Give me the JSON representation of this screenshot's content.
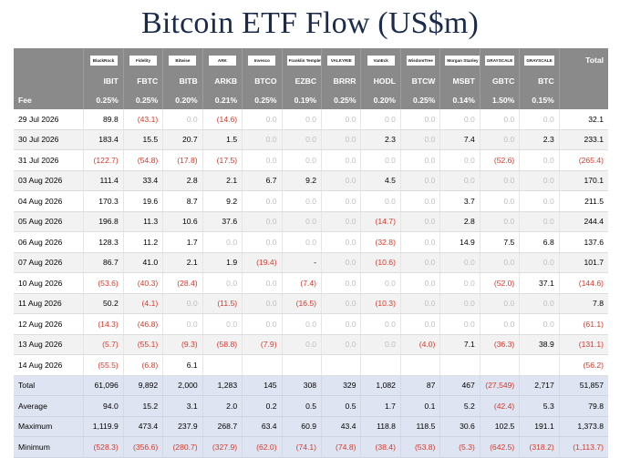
{
  "title": "Bitcoin ETF Flow (US$m)",
  "issuers": [
    "BlackRock",
    "Fidelity",
    "Bitwise",
    "ARK",
    "Invesco",
    "Franklin Templeton",
    "VALKYRIE",
    "VanEck",
    "WisdomTree",
    "Morgan Stanley",
    "GRAYSCALE",
    "GRAYSCALE"
  ],
  "tickers": [
    "IBIT",
    "FBTC",
    "BITB",
    "ARKB",
    "BTCO",
    "EZBC",
    "BRRR",
    "HODL",
    "BTCW",
    "MSBT",
    "GBTC",
    "BTC"
  ],
  "total_label": "Total",
  "fee_label": "Fee",
  "fees": [
    "0.25%",
    "0.25%",
    "0.20%",
    "0.21%",
    "0.25%",
    "0.19%",
    "0.25%",
    "0.20%",
    "0.25%",
    "0.14%",
    "1.50%",
    "0.15%"
  ],
  "rows": [
    {
      "date": "29 Jul 2026",
      "values": [
        "89.8",
        "(43.1)",
        "0.0",
        "(14.6)",
        "0.0",
        "0.0",
        "0.0",
        "0.0",
        "0.0",
        "0.0",
        "0.0",
        "0.0"
      ],
      "total": "32.1"
    },
    {
      "date": "30 Jul 2026",
      "values": [
        "183.4",
        "15.5",
        "20.7",
        "1.5",
        "0.0",
        "0.0",
        "0.0",
        "2.3",
        "0.0",
        "7.4",
        "0.0",
        "2.3"
      ],
      "total": "233.1"
    },
    {
      "date": "31 Jul 2026",
      "values": [
        "(122.7)",
        "(54.8)",
        "(17.8)",
        "(17.5)",
        "0.0",
        "0.0",
        "0.0",
        "0.0",
        "0.0",
        "0.0",
        "(52.6)",
        "0.0"
      ],
      "total": "(265.4)"
    },
    {
      "date": "03 Aug 2026",
      "values": [
        "111.4",
        "33.4",
        "2.8",
        "2.1",
        "6.7",
        "9.2",
        "0.0",
        "4.5",
        "0.0",
        "0.0",
        "0.0",
        "0.0"
      ],
      "total": "170.1"
    },
    {
      "date": "04 Aug 2026",
      "values": [
        "170.3",
        "19.6",
        "8.7",
        "9.2",
        "0.0",
        "0.0",
        "0.0",
        "0.0",
        "0.0",
        "3.7",
        "0.0",
        "0.0"
      ],
      "total": "211.5"
    },
    {
      "date": "05 Aug 2026",
      "values": [
        "196.8",
        "11.3",
        "10.6",
        "37.6",
        "0.0",
        "0.0",
        "0.0",
        "(14.7)",
        "0.0",
        "2.8",
        "0.0",
        "0.0"
      ],
      "total": "244.4"
    },
    {
      "date": "06 Aug 2026",
      "values": [
        "128.3",
        "11.2",
        "1.7",
        "0.0",
        "0.0",
        "0.0",
        "0.0",
        "(32.8)",
        "0.0",
        "14.9",
        "7.5",
        "6.8"
      ],
      "total": "137.6"
    },
    {
      "date": "07 Aug 2026",
      "values": [
        "86.7",
        "41.0",
        "2.1",
        "1.9",
        "(19.4)",
        "-",
        "0.0",
        "(10.6)",
        "0.0",
        "0.0",
        "0.0",
        "0.0"
      ],
      "total": "101.7"
    },
    {
      "date": "10 Aug 2026",
      "values": [
        "(53.6)",
        "(40.3)",
        "(28.4)",
        "0.0",
        "0.0",
        "(7.4)",
        "0.0",
        "0.0",
        "0.0",
        "0.0",
        "(52.0)",
        "37.1"
      ],
      "total": "(144.6)"
    },
    {
      "date": "11 Aug 2026",
      "values": [
        "50.2",
        "(4.1)",
        "0.0",
        "(11.5)",
        "0.0",
        "(16.5)",
        "0.0",
        "(10.3)",
        "0.0",
        "0.0",
        "0.0",
        "0.0"
      ],
      "total": "7.8"
    },
    {
      "date": "12 Aug 2026",
      "values": [
        "(14.3)",
        "(46.8)",
        "0.0",
        "0.0",
        "0.0",
        "0.0",
        "0.0",
        "0.0",
        "0.0",
        "0.0",
        "0.0",
        "0.0"
      ],
      "total": "(61.1)"
    },
    {
      "date": "13 Aug 2026",
      "values": [
        "(5.7)",
        "(55.1)",
        "(9.3)",
        "(58.8)",
        "(7.9)",
        "0.0",
        "0.0",
        "0.0",
        "(4.0)",
        "7.1",
        "(36.3)",
        "38.9"
      ],
      "total": "(131.1)"
    },
    {
      "date": "14 Aug 2026",
      "values": [
        "(55.5)",
        "(6.8)",
        "6.1",
        "",
        "",
        "",
        "",
        "",
        "",
        "",
        "",
        ""
      ],
      "total": "(56.2)"
    }
  ],
  "summary": [
    {
      "label": "Total",
      "values": [
        "61,096",
        "9,892",
        "2,000",
        "1,283",
        "145",
        "308",
        "329",
        "1,082",
        "87",
        "467",
        "(27,549)",
        "2,717"
      ],
      "total": "51,857"
    },
    {
      "label": "Average",
      "values": [
        "94.0",
        "15.2",
        "3.1",
        "2.0",
        "0.2",
        "0.5",
        "0.5",
        "1.7",
        "0.1",
        "5.2",
        "(42.4)",
        "5.3"
      ],
      "total": "79.8"
    },
    {
      "label": "Maximum",
      "values": [
        "1,119.9",
        "473.4",
        "237.9",
        "268.7",
        "63.4",
        "60.9",
        "43.4",
        "118.8",
        "118.5",
        "30.6",
        "102.5",
        "191.1"
      ],
      "total": "1,373.8"
    },
    {
      "label": "Minimum",
      "values": [
        "(528.3)",
        "(356.6)",
        "(280.7)",
        "(327.9)",
        "(62.0)",
        "(74.1)",
        "(74.8)",
        "(38.4)",
        "(53.8)",
        "(5.3)",
        "(642.5)",
        "(318.2)"
      ],
      "total": "(1,113.7)"
    }
  ]
}
